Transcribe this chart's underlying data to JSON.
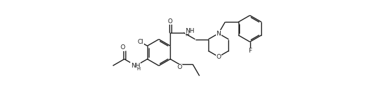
{
  "figsize": [
    5.66,
    1.48
  ],
  "dpi": 100,
  "bg_color": "#ffffff",
  "line_color": "#1a1a1a",
  "line_width": 1.0,
  "font_size": 6.5,
  "xlim": [
    0,
    13.0
  ],
  "ylim": [
    0,
    7.5
  ]
}
